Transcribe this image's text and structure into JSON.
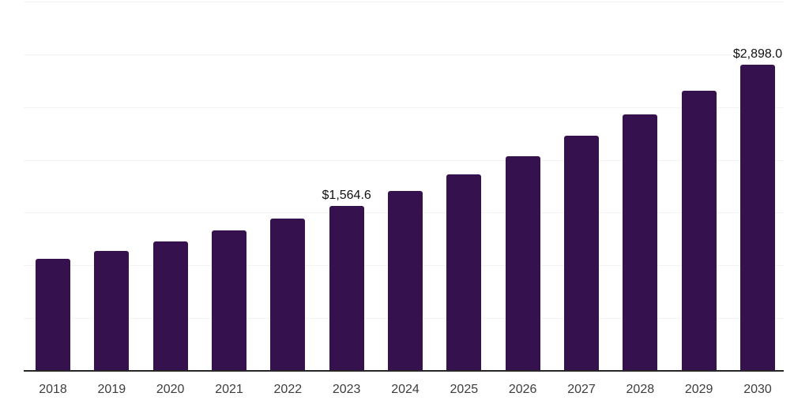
{
  "chart_data": {
    "type": "bar",
    "title": "",
    "xlabel": "",
    "ylabel": "",
    "categories": [
      "2018",
      "2019",
      "2020",
      "2021",
      "2022",
      "2023",
      "2024",
      "2025",
      "2026",
      "2027",
      "2028",
      "2029",
      "2030"
    ],
    "values": [
      1059.0,
      1136.0,
      1228.0,
      1333.0,
      1445.0,
      1564.6,
      1708.6,
      1865.9,
      2037.6,
      2225.1,
      2429.9,
      2653.5,
      2898.0
    ],
    "data_labels": [
      {
        "index": 5,
        "text": "$1,564.6"
      },
      {
        "index": 12,
        "text": "$2,898.0"
      }
    ],
    "ylim": [
      0,
      3500
    ],
    "gridline_step": 500,
    "grid": true,
    "y_tick_labels_visible": false,
    "legend": "none",
    "colors": {
      "bar": "#35114E",
      "gridline": "#F3F3F3",
      "axis_line": "#262626",
      "tick_label": "#3D3D3D",
      "data_label": "#111111",
      "background": "#FFFFFF"
    }
  }
}
